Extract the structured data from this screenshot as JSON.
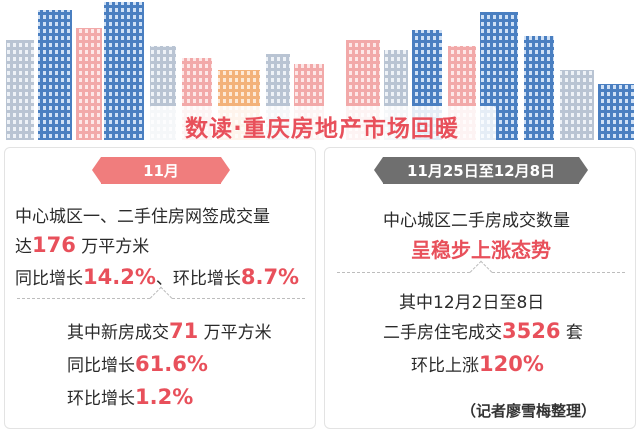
{
  "header": {
    "title": "数读·重庆房地产市场回暖"
  },
  "left_card": {
    "tag": "11月",
    "line1": "中心城区一、二手住房网签成交量",
    "line2_prefix": "达",
    "line2_value": "176",
    "line2_suffix": "万平方米",
    "line3_prefix": "同比增长",
    "line3_value_a": "14.2%",
    "line3_mid": "、环比增长",
    "line3_value_b": "8.7%",
    "sub_line1_prefix": "其中新房成交",
    "sub_line1_value": "71",
    "sub_line1_suffix": "万平方米",
    "sub_line2_prefix": "同比增长",
    "sub_line2_value": "61.6%",
    "sub_line3_prefix": "环比增长",
    "sub_line3_value": "1.2%"
  },
  "right_card": {
    "tag": "11月25日至12月8日",
    "line1": "中心城区二手房成交数量",
    "line2": "呈稳步上涨态势",
    "sub_line1": "其中12月2日至8日",
    "sub_line2_prefix": "二手房住宅成交",
    "sub_line2_value": "3526",
    "sub_line2_suffix": "套",
    "sub_line3_prefix": "环比上涨",
    "sub_line3_value": "120%",
    "credit": "（记者廖雪梅整理）"
  },
  "colors": {
    "accent": "#e8505b",
    "tag_red": "#f07d7d",
    "tag_dark": "#6f6f6f"
  },
  "illustration": "city-skyline-buildings"
}
